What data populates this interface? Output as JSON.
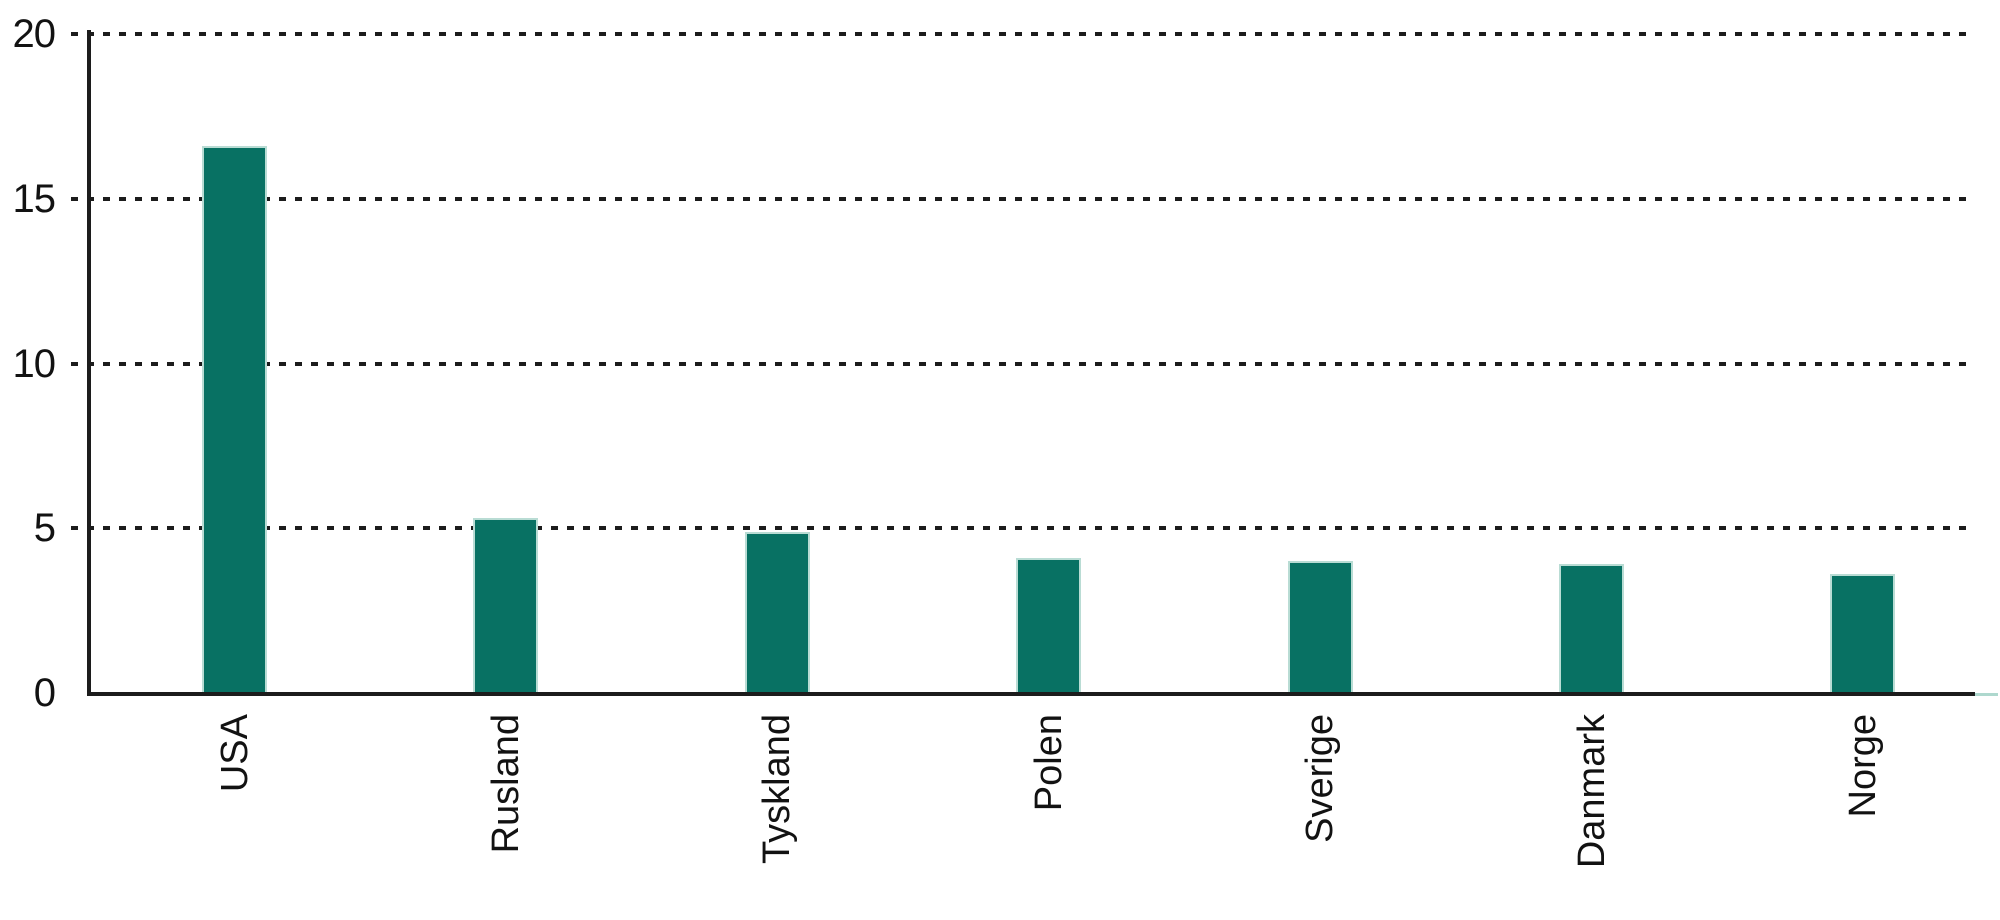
{
  "chart_data": {
    "type": "bar",
    "title": "",
    "xlabel": "",
    "ylabel": "",
    "categories": [
      "USA",
      "Rusland",
      "Tyskland",
      "Polen",
      "Sverige",
      "Danmark",
      "Norge"
    ],
    "values": [
      16.6,
      5.3,
      4.9,
      4.1,
      4.0,
      3.9,
      3.6
    ],
    "ylim": [
      0,
      20
    ],
    "ytick_labels": [
      "0",
      "5",
      "10",
      "15",
      "20"
    ],
    "ytick_values": [
      0,
      5,
      10,
      15,
      20
    ],
    "grid": "horizontal dotted gridlines at 5, 10, 15, 20",
    "legend_position": "none",
    "x_label_rotation_deg": -90,
    "colors": {
      "bar_fill": "#087163",
      "bar_edge": "#b9dcd4",
      "axis": "#1c1c1c",
      "text": "#121212",
      "baseline_tail": "#aed8ce",
      "background": "#ffffff"
    }
  }
}
